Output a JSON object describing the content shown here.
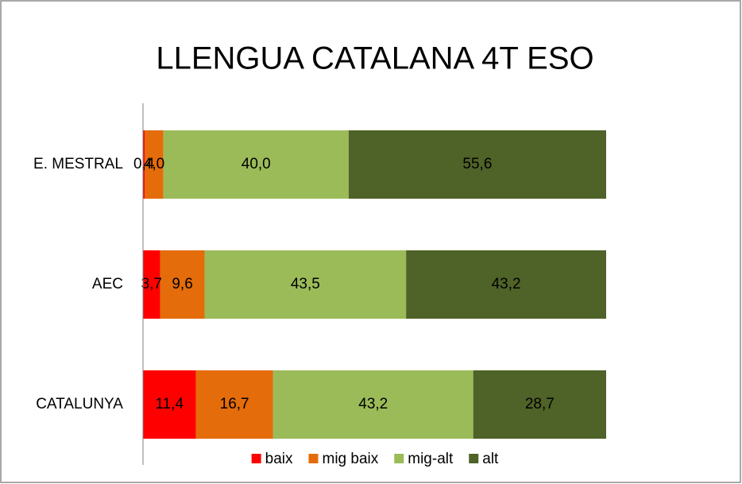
{
  "chart_data": {
    "type": "stacked-bar-horizontal",
    "title": "LLENGUA CATALANA 4T ESO",
    "categories": [
      "E. MESTRAL",
      "AEC",
      "CATALUNYA"
    ],
    "xlim": [
      0,
      100
    ],
    "series": [
      {
        "name": "baix",
        "color": "#ff0000",
        "values": [
          0.4,
          3.7,
          11.4
        ],
        "value_labels": [
          "0,4",
          "3,7",
          "11,4"
        ]
      },
      {
        "name": "mig baix",
        "color": "#e46c0a",
        "values": [
          4.0,
          9.6,
          16.7
        ],
        "value_labels": [
          "4,0",
          "9,6",
          "16,7"
        ]
      },
      {
        "name": "mig-alt",
        "color": "#9bbb59",
        "values": [
          40.0,
          43.5,
          43.2
        ],
        "value_labels": [
          "40,0",
          "43,5",
          "43,2"
        ]
      },
      {
        "name": "alt",
        "color": "#4f6228",
        "values": [
          55.6,
          43.2,
          28.7
        ],
        "value_labels": [
          "55,6",
          "43,2",
          "28,7"
        ]
      }
    ],
    "legend": "bottom"
  }
}
